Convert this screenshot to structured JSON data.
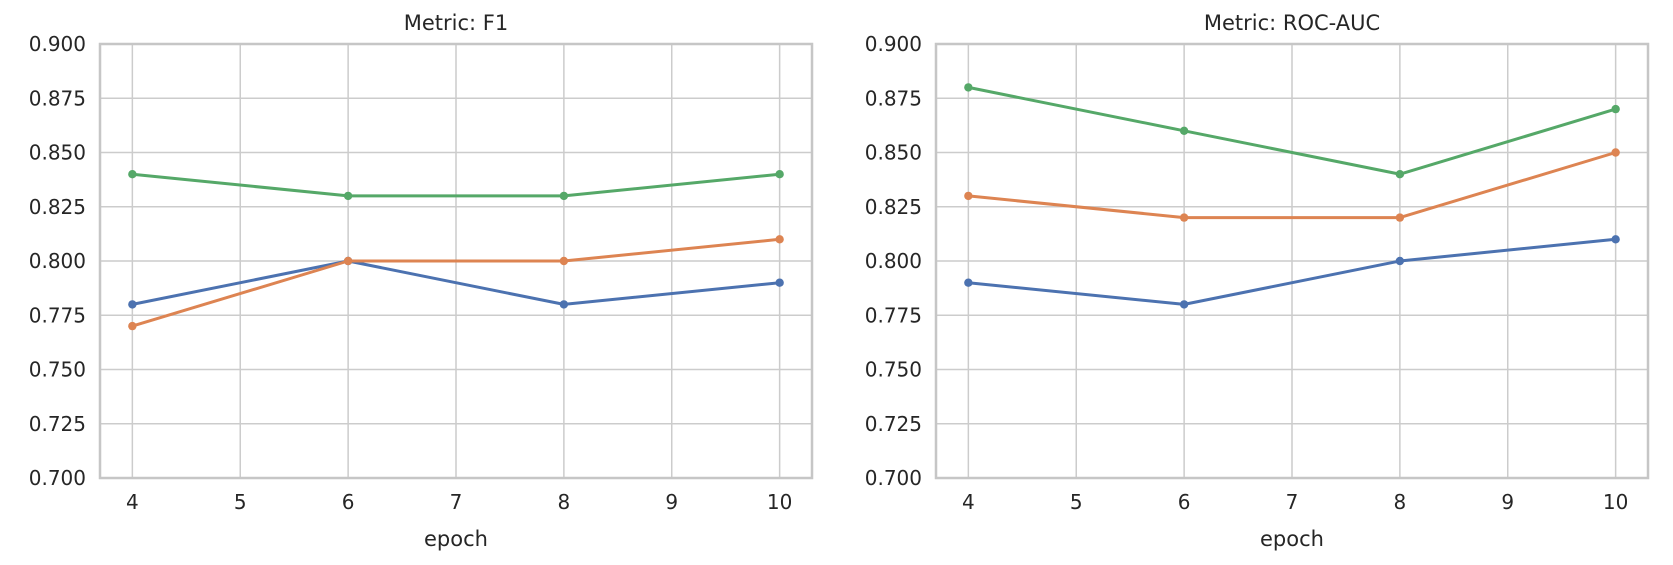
{
  "figure": {
    "background": "#ffffff",
    "layout": "two line charts side by side, shared y-range, no legend"
  },
  "style": {
    "grid_color": "#cccccc",
    "spine_color": "#c6c6c6",
    "text_color": "#262626",
    "palette": {
      "blue": "#4c72b0",
      "orange": "#dd8452",
      "green": "#55a868"
    }
  },
  "chart_data": [
    {
      "type": "line",
      "title": "Metric: F1",
      "xlabel": "epoch",
      "ylabel": "",
      "x": [
        4,
        6,
        8,
        10
      ],
      "xlim": [
        3.7,
        10.3
      ],
      "ylim": [
        0.7,
        0.9
      ],
      "xticks": [
        4,
        5,
        6,
        7,
        8,
        9,
        10
      ],
      "xtick_labels": [
        "4",
        "5",
        "6",
        "7",
        "8",
        "9",
        "10"
      ],
      "yticks": [
        0.7,
        0.725,
        0.75,
        0.775,
        0.8,
        0.825,
        0.85,
        0.875,
        0.9
      ],
      "ytick_labels": [
        "0.700",
        "0.725",
        "0.750",
        "0.775",
        "0.800",
        "0.825",
        "0.850",
        "0.875",
        "0.900"
      ],
      "grid": true,
      "legend": "none",
      "markers": true,
      "series": [
        {
          "name": "series-blue",
          "color": "#4c72b0",
          "values": [
            0.78,
            0.8,
            0.78,
            0.79
          ]
        },
        {
          "name": "series-orange",
          "color": "#dd8452",
          "values": [
            0.77,
            0.8,
            0.8,
            0.81
          ]
        },
        {
          "name": "series-green",
          "color": "#55a868",
          "values": [
            0.84,
            0.83,
            0.83,
            0.84
          ]
        }
      ]
    },
    {
      "type": "line",
      "title": "Metric: ROC-AUC",
      "xlabel": "epoch",
      "ylabel": "",
      "x": [
        4,
        6,
        8,
        10
      ],
      "xlim": [
        3.7,
        10.3
      ],
      "ylim": [
        0.7,
        0.9
      ],
      "xticks": [
        4,
        5,
        6,
        7,
        8,
        9,
        10
      ],
      "xtick_labels": [
        "4",
        "5",
        "6",
        "7",
        "8",
        "9",
        "10"
      ],
      "yticks": [
        0.7,
        0.725,
        0.75,
        0.775,
        0.8,
        0.825,
        0.85,
        0.875,
        0.9
      ],
      "ytick_labels": [
        "0.700",
        "0.725",
        "0.750",
        "0.775",
        "0.800",
        "0.825",
        "0.850",
        "0.875",
        "0.900"
      ],
      "grid": true,
      "legend": "none",
      "markers": true,
      "series": [
        {
          "name": "series-blue",
          "color": "#4c72b0",
          "values": [
            0.79,
            0.78,
            0.8,
            0.81
          ]
        },
        {
          "name": "series-orange",
          "color": "#dd8452",
          "values": [
            0.83,
            0.82,
            0.82,
            0.85
          ]
        },
        {
          "name": "series-green",
          "color": "#55a868",
          "values": [
            0.88,
            0.86,
            0.84,
            0.87
          ]
        }
      ]
    }
  ]
}
